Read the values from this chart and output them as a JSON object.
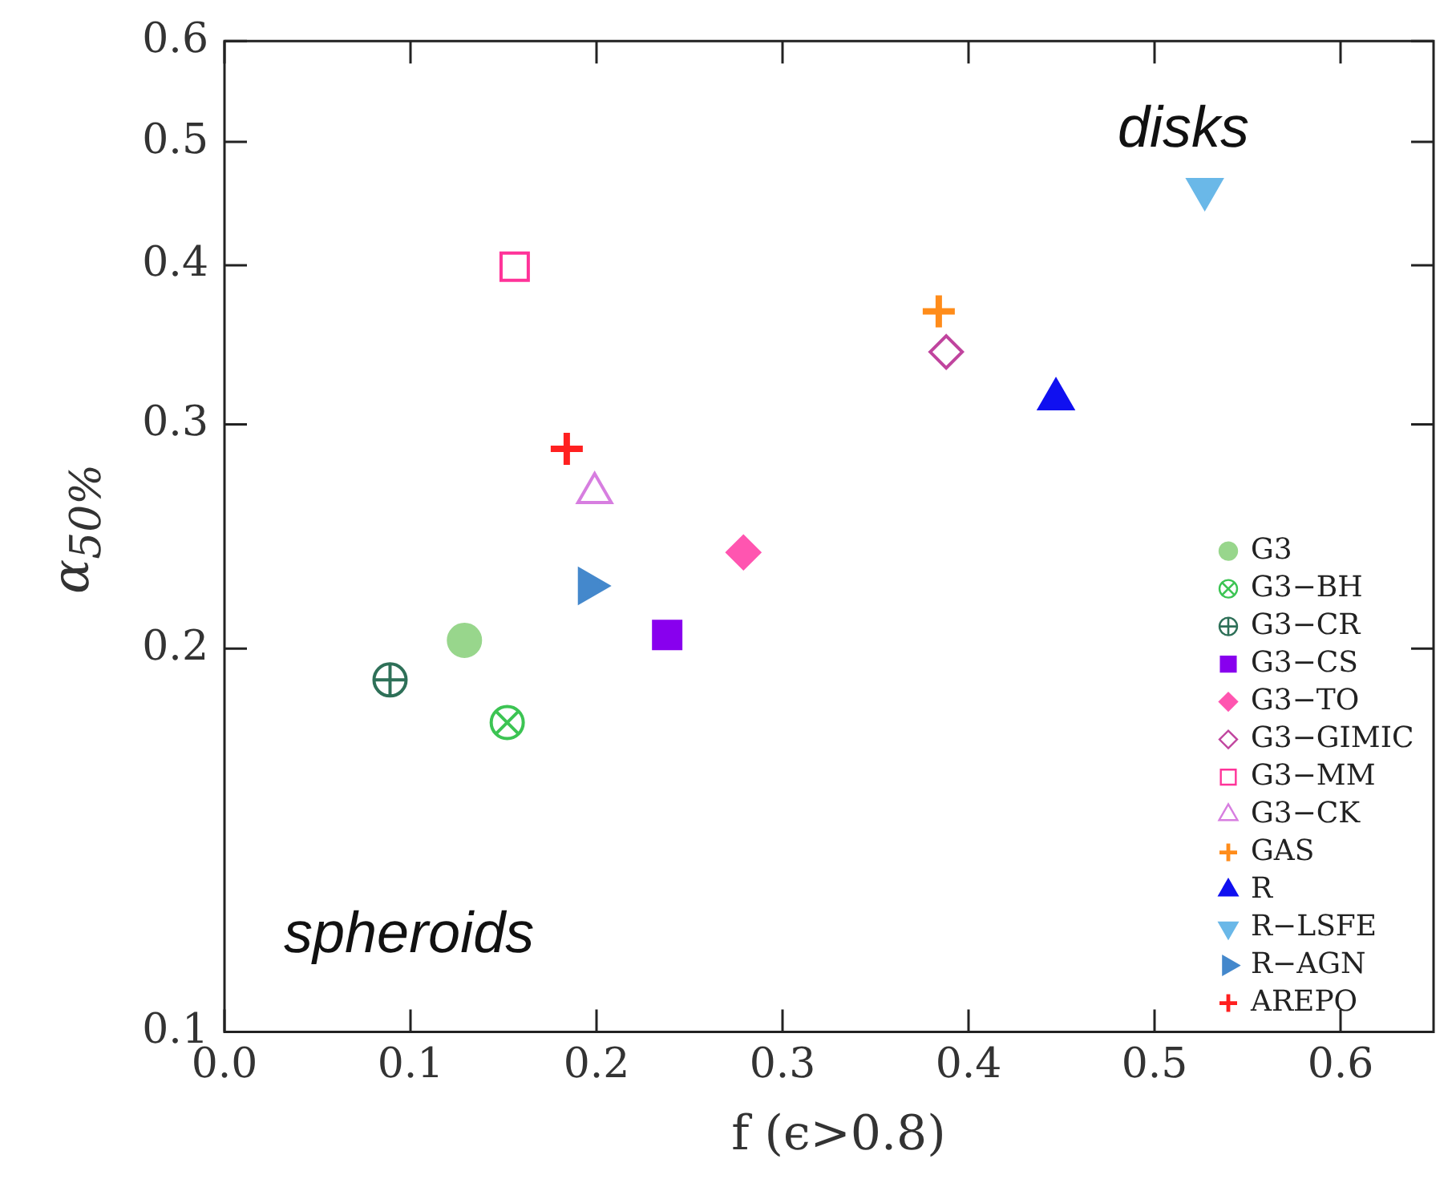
{
  "chart_data": {
    "type": "scatter",
    "xlabel": "f (ϵ>0.8)",
    "ylabel": "α$_{50%}$",
    "annotations": [
      "disks",
      "spheroids"
    ],
    "xlim": [
      0,
      0.65
    ],
    "xticks": [
      {
        "value": 0,
        "label": "0.0"
      },
      0.1,
      0.2,
      0.3,
      0.4,
      0.5,
      0.6
    ],
    "ylim": [
      0.1,
      0.6
    ],
    "yticks": [
      0.1,
      0.2,
      0.3,
      0.4,
      0.5,
      0.6
    ],
    "log": "y",
    "grid": false,
    "legend": "bottom right",
    "series": [
      {
        "name": "G3",
        "color": "#98d68c",
        "marker": "circle",
        "x": [
          0.129
        ],
        "values": [
          0.203
        ]
      },
      {
        "name": "G3−BH",
        "color": "#3cc453",
        "marker": "circle-x",
        "x": [
          0.152
        ],
        "values": [
          0.175
        ]
      },
      {
        "name": "G3−CR",
        "color": "#2e7058",
        "marker": "circle-plus",
        "x": [
          0.089
        ],
        "values": [
          0.189
        ]
      },
      {
        "name": "G3−CS",
        "color": "#8800ee",
        "marker": "square",
        "x": [
          0.238
        ],
        "values": [
          0.205
        ]
      },
      {
        "name": "G3−TO",
        "color": "#ff55b0",
        "marker": "diamond",
        "x": [
          0.279
        ],
        "values": [
          0.238
        ]
      },
      {
        "name": "G3−GIMIC",
        "color": "#c0449e",
        "marker": "diamond-open",
        "x": [
          0.388
        ],
        "values": [
          0.342
        ]
      },
      {
        "name": "G3−MM",
        "color": "#ff3399",
        "marker": "square-open",
        "x": [
          0.156
        ],
        "values": [
          0.399
        ]
      },
      {
        "name": "G3−CK",
        "color": "#d77ee0",
        "marker": "triangle-open",
        "x": [
          0.199
        ],
        "values": [
          0.265
        ]
      },
      {
        "name": "GAS",
        "color": "#ff8c1a",
        "marker": "cross",
        "x": [
          0.384
        ],
        "values": [
          0.368
        ]
      },
      {
        "name": "R",
        "color": "#1010f0",
        "marker": "triangle",
        "x": [
          0.447
        ],
        "values": [
          0.314
        ]
      },
      {
        "name": "R−LSFE",
        "color": "#6ab8e8",
        "marker": "triangle-down",
        "x": [
          0.527
        ],
        "values": [
          0.459
        ]
      },
      {
        "name": "R−AGN",
        "color": "#4488cc",
        "marker": "triangle-right",
        "x": [
          0.196
        ],
        "values": [
          0.224
        ]
      },
      {
        "name": "AREPO",
        "color": "#ff2020",
        "marker": "cross",
        "x": [
          0.184
        ],
        "values": [
          0.287
        ]
      }
    ]
  }
}
